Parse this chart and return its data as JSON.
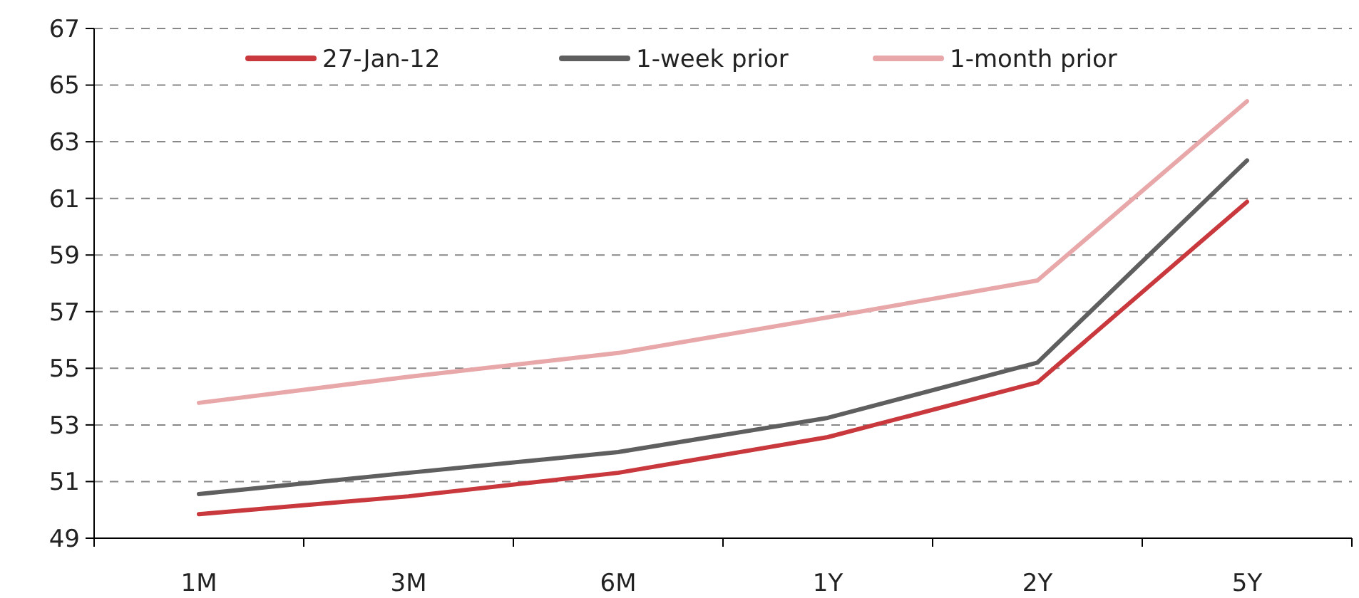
{
  "chart_data": {
    "type": "line",
    "categories": [
      "1M",
      "3M",
      "6M",
      "1Y",
      "2Y",
      "5Y"
    ],
    "series": [
      {
        "name": "27-Jan-12",
        "color": "#c8383c",
        "values": [
          49.85,
          50.48,
          51.31,
          52.57,
          54.5,
          60.88
        ]
      },
      {
        "name": "1-week prior",
        "color": "#5f5f5f",
        "values": [
          50.56,
          51.31,
          52.04,
          53.25,
          55.2,
          62.34
        ]
      },
      {
        "name": "1-month prior",
        "color": "#e8a8aa",
        "values": [
          53.78,
          54.7,
          55.54,
          56.8,
          58.1,
          64.43
        ]
      }
    ],
    "ylim": [
      49,
      67
    ],
    "yticks": [
      49,
      51,
      53,
      55,
      57,
      59,
      61,
      63,
      65,
      67
    ],
    "grid": "y",
    "legend": "top",
    "marker": "none",
    "line_style": "solid"
  }
}
